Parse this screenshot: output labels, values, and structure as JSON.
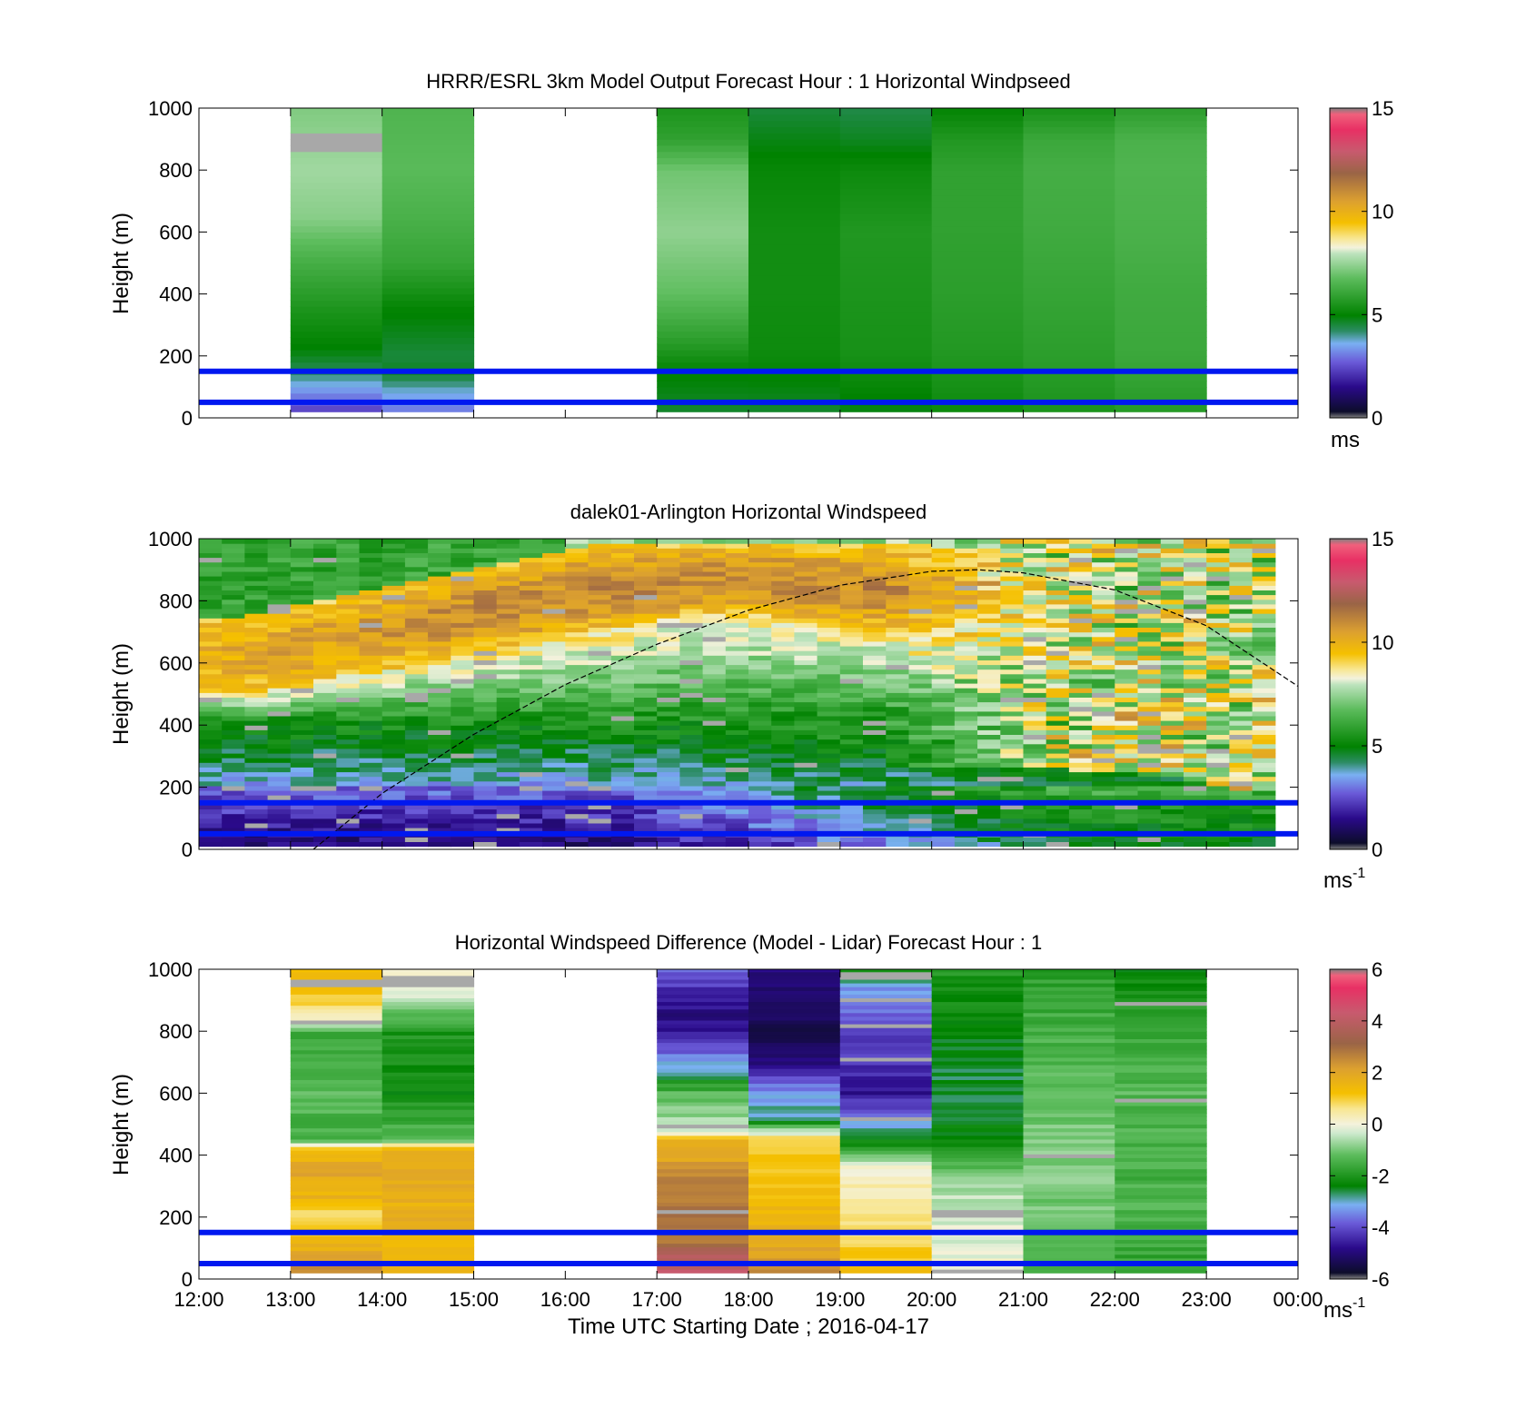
{
  "figure": {
    "xlabel": "Time UTC  Starting Date ; 2016-04-17",
    "x_ticks": [
      "12:00",
      "13:00",
      "14:00",
      "15:00",
      "16:00",
      "17:00",
      "18:00",
      "19:00",
      "20:00",
      "21:00",
      "22:00",
      "23:00",
      "00:00"
    ],
    "y_ticks": [
      "0",
      "200",
      "400",
      "600",
      "800",
      "1000"
    ],
    "reference_lines_m": [
      50,
      150
    ],
    "reference_line_color": "#0018f0"
  },
  "chart_data": [
    {
      "type": "heatmap",
      "title": "HRRR/ESRL 3km Model Output   Forecast Hour : 1 Horizontal Windpseed",
      "ylabel": "Height (m)",
      "xlim": [
        "12:00",
        "00:00"
      ],
      "ylim": [
        0,
        1000
      ],
      "colorbar": {
        "min": 0,
        "max": 15,
        "ticks": [
          "0",
          "5",
          "10",
          "15"
        ],
        "unit": "ms",
        "unit_sup": ""
      },
      "columns": [
        {
          "start": "13:00",
          "end": "14:00",
          "top_m": 1000,
          "bottom_m": 20
        },
        {
          "start": "14:00",
          "end": "15:00",
          "top_m": 1000,
          "bottom_m": 20
        },
        {
          "start": "17:00",
          "end": "18:00",
          "top_m": 1000,
          "bottom_m": 20
        },
        {
          "start": "18:00",
          "end": "19:00",
          "top_m": 1000,
          "bottom_m": 20
        },
        {
          "start": "19:00",
          "end": "20:00",
          "top_m": 1000,
          "bottom_m": 20
        },
        {
          "start": "20:00",
          "end": "21:00",
          "top_m": 1000,
          "bottom_m": 20
        },
        {
          "start": "21:00",
          "end": "22:00",
          "top_m": 1000,
          "bottom_m": 20
        },
        {
          "start": "22:00",
          "end": "23:00",
          "top_m": 1000,
          "bottom_m": 20
        }
      ]
    },
    {
      "type": "heatmap",
      "title": "dalek01-Arlington  Horizontal Windspeed",
      "ylabel": "Height (m)",
      "xlim": [
        "12:00",
        "00:00"
      ],
      "ylim": [
        0,
        1000
      ],
      "colorbar": {
        "min": 0,
        "max": 15,
        "ticks": [
          "0",
          "5",
          "10",
          "15"
        ],
        "unit": "ms",
        "unit_sup": "-1"
      },
      "data_extent": {
        "start": "12:00",
        "end": "23:45",
        "bottom_m": 10,
        "top_m": 1000
      },
      "overlay_curve": {
        "style": "dashed",
        "color": "#000000",
        "points": [
          [
            "13:15",
            0
          ],
          [
            "14:00",
            180
          ],
          [
            "15:00",
            370
          ],
          [
            "16:00",
            530
          ],
          [
            "17:00",
            660
          ],
          [
            "18:00",
            770
          ],
          [
            "19:00",
            850
          ],
          [
            "20:00",
            895
          ],
          [
            "20:30",
            900
          ],
          [
            "21:00",
            890
          ],
          [
            "22:00",
            835
          ],
          [
            "23:00",
            720
          ],
          [
            "00:00",
            525
          ]
        ]
      }
    },
    {
      "type": "heatmap",
      "title": "Horizontal Windspeed Difference (Model - Lidar) Forecast Hour : 1",
      "ylabel": "Height (m)",
      "xlim": [
        "12:00",
        "00:00"
      ],
      "ylim": [
        0,
        1000
      ],
      "colorbar": {
        "min": -6,
        "max": 6,
        "ticks": [
          "-6",
          "-4",
          "-2",
          "0",
          "2",
          "4",
          "6"
        ],
        "unit": "ms",
        "unit_sup": "-1"
      },
      "columns": [
        {
          "start": "13:00",
          "end": "14:00",
          "top_m": 1000,
          "bottom_m": 20
        },
        {
          "start": "14:00",
          "end": "15:00",
          "top_m": 1000,
          "bottom_m": 20
        },
        {
          "start": "17:00",
          "end": "18:00",
          "top_m": 1000,
          "bottom_m": 20
        },
        {
          "start": "18:00",
          "end": "19:00",
          "top_m": 1000,
          "bottom_m": 20
        },
        {
          "start": "19:00",
          "end": "20:00",
          "top_m": 1000,
          "bottom_m": 20
        },
        {
          "start": "20:00",
          "end": "21:00",
          "top_m": 1000,
          "bottom_m": 20
        },
        {
          "start": "21:00",
          "end": "22:00",
          "top_m": 1000,
          "bottom_m": 20
        },
        {
          "start": "22:00",
          "end": "23:00",
          "top_m": 1000,
          "bottom_m": 20
        }
      ]
    }
  ]
}
